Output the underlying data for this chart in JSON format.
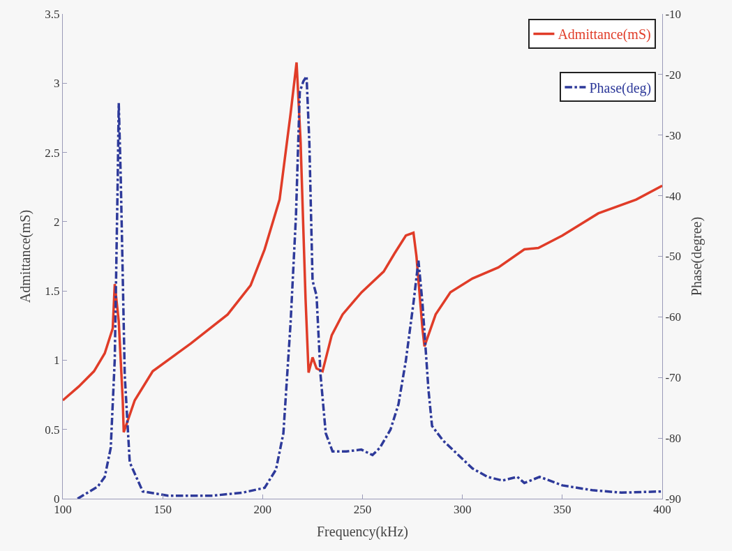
{
  "chart_data": {
    "type": "line",
    "xlabel": "Frequency(kHz)",
    "ylabel": "Admittance(mS)",
    "y2label": "Phase(degree)",
    "xlim": [
      100,
      400
    ],
    "xticks": [
      100,
      150,
      200,
      250,
      300,
      350,
      400
    ],
    "ylim": [
      0,
      3.5
    ],
    "yticks": [
      0,
      0.5,
      1,
      1.5,
      2,
      2.5,
      3,
      3.5
    ],
    "y2lim": [
      -90,
      -10
    ],
    "y2ticks": [
      -90,
      -80,
      -70,
      -60,
      -50,
      -40,
      -30,
      -20,
      -10
    ],
    "grid": false,
    "legend": "top right",
    "marker": "none",
    "series": [
      {
        "name": "Admittance(mS)",
        "color": "#e03c28",
        "line_style": "solid",
        "x": [
          100,
          108,
          115.6,
          121,
          125,
          126,
          128,
          130,
          130.5,
          136,
          145,
          164,
          182.5,
          194,
          201,
          208.5,
          214,
          217,
          219,
          221.5,
          223,
          225,
          227,
          230,
          234.6,
          240,
          249.5,
          260.6,
          266,
          271.7,
          275.5,
          277,
          280,
          281,
          286.6,
          294,
          305,
          318,
          331,
          338,
          350,
          368,
          387,
          400
        ],
        "values": [
          0.71,
          0.81,
          0.92,
          1.05,
          1.23,
          1.55,
          1.28,
          0.71,
          0.48,
          0.71,
          0.92,
          1.12,
          1.33,
          1.54,
          1.8,
          2.16,
          2.78,
          3.15,
          2.58,
          1.44,
          0.91,
          1.02,
          0.94,
          0.92,
          1.18,
          1.33,
          1.49,
          1.64,
          1.77,
          1.9,
          1.92,
          1.75,
          1.23,
          1.1,
          1.33,
          1.49,
          1.59,
          1.67,
          1.8,
          1.81,
          1.9,
          2.06,
          2.16,
          2.26
        ]
      },
      {
        "name": "Phase(deg)",
        "color": "#2e3a9a",
        "line_style": "dashed",
        "axis": "y2",
        "x": [
          107.4,
          117.5,
          121,
          124,
          126,
          127.5,
          128,
          129,
          131,
          133.5,
          140,
          152.8,
          175,
          190,
          201,
          206.7,
          210.4,
          214,
          216.7,
          218.6,
          220.4,
          222,
          223.4,
          225,
          227,
          229,
          231.6,
          235,
          242,
          249.4,
          255,
          258.7,
          264,
          268,
          271.7,
          275.5,
          278,
          280,
          283,
          284.8,
          290.3,
          298,
          305,
          312.6,
          320,
          327.5,
          331,
          338.7,
          350,
          365,
          379.6,
          400
        ],
        "values": [
          -90,
          -88,
          -86.4,
          -81.6,
          -67,
          -37,
          -24.7,
          -37,
          -69.6,
          -84,
          -88.8,
          -89.5,
          -89.5,
          -89,
          -88.2,
          -85.2,
          -79.2,
          -61,
          -43.3,
          -22.9,
          -21.1,
          -20.3,
          -31.3,
          -54,
          -56.5,
          -69.6,
          -79.2,
          -82.2,
          -82.2,
          -81.9,
          -82.8,
          -81.6,
          -78.6,
          -74.4,
          -67.2,
          -57.7,
          -50.7,
          -57.7,
          -72,
          -78,
          -80.4,
          -82.8,
          -85,
          -86.4,
          -87,
          -86.4,
          -87.4,
          -86.4,
          -87.8,
          -88.6,
          -89,
          -88.8
        ]
      }
    ]
  }
}
